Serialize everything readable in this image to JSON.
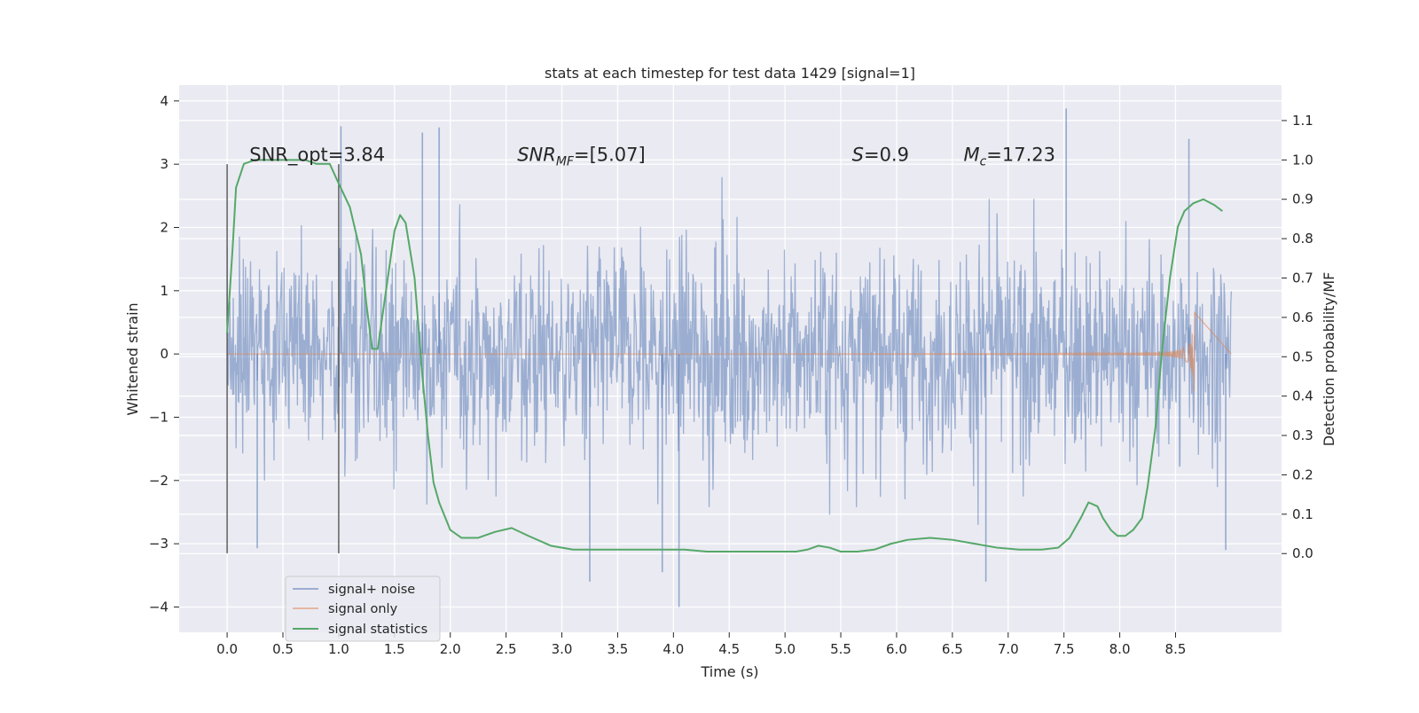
{
  "chart_data": {
    "type": "line",
    "title": "stats at each timestep for test data 1429 [signal=1]",
    "xlabel": "Time (s)",
    "ylabel_left": "Whitened strain",
    "ylabel_right": "Detection probability/MF",
    "xlim": [
      -0.43,
      9.45
    ],
    "ylim_left": [
      -4.4,
      4.25
    ],
    "ylim_right": [
      -0.2,
      1.19
    ],
    "x_ticks": [
      "0.0",
      "0.5",
      "1.0",
      "1.5",
      "2.0",
      "2.5",
      "3.0",
      "3.5",
      "4.0",
      "4.5",
      "5.0",
      "5.5",
      "6.0",
      "6.5",
      "7.0",
      "7.5",
      "8.0",
      "8.5"
    ],
    "x_tick_values": [
      0.0,
      0.5,
      1.0,
      1.5,
      2.0,
      2.5,
      3.0,
      3.5,
      4.0,
      4.5,
      5.0,
      5.5,
      6.0,
      6.5,
      7.0,
      7.5,
      8.0,
      8.5
    ],
    "y_left_ticks": [
      "4",
      "3",
      "2",
      "1",
      "0",
      "−1",
      "−2",
      "−3",
      "−4"
    ],
    "y_left_tick_values": [
      4,
      3,
      2,
      1,
      0,
      -1,
      -2,
      -3,
      -4
    ],
    "y_right_ticks": [
      "1.1",
      "1.0",
      "0.9",
      "0.8",
      "0.7",
      "0.6",
      "0.5",
      "0.4",
      "0.3",
      "0.2",
      "0.1",
      "0.0"
    ],
    "y_right_tick_values": [
      1.1,
      1.0,
      0.9,
      0.8,
      0.7,
      0.6,
      0.5,
      0.4,
      0.3,
      0.2,
      0.1,
      0.0
    ],
    "grid": true,
    "legend_position": "lower-left",
    "annotations": [
      {
        "text": "SNR_opt=3.84",
        "x": 0.2,
        "y": 3.05
      },
      {
        "text": "SNR",
        "sub": "MF",
        "rest": "=[5.07]",
        "x": 2.6,
        "y": 3.05,
        "italic": true
      },
      {
        "text": "S",
        "rest": "=0.9",
        "x": 5.6,
        "y": 3.05,
        "italic": true
      },
      {
        "text": "M",
        "sub": "c",
        "rest": "=17.23",
        "x": 6.6,
        "y": 3.05,
        "italic": true
      }
    ],
    "vertical_lines": [
      {
        "x": 0.0,
        "y_range": [
          -3.15,
          3.0
        ]
      },
      {
        "x": 1.0,
        "y_range": [
          -3.15,
          3.0
        ]
      }
    ],
    "series": [
      {
        "name": "signal+ noise",
        "axis": "left",
        "color": "#4c72b0",
        "kind": "noise",
        "x_range": [
          0.0,
          9.0
        ],
        "envelope": [
          -2.3,
          2.3
        ],
        "extreme_peaks": [
          {
            "x": 1.02,
            "y": 3.6
          },
          {
            "x": 1.75,
            "y": 3.5
          },
          {
            "x": 1.9,
            "y": 3.58
          },
          {
            "x": 7.52,
            "y": 3.88
          },
          {
            "x": 8.62,
            "y": 3.4
          },
          {
            "x": 4.05,
            "y": -4.0
          },
          {
            "x": 3.25,
            "y": -3.6
          },
          {
            "x": 6.8,
            "y": -3.6
          },
          {
            "x": 3.9,
            "y": -3.45
          },
          {
            "x": 8.95,
            "y": -3.1
          },
          {
            "x": 0.27,
            "y": -3.07
          }
        ]
      },
      {
        "name": "signal only",
        "axis": "left",
        "color": "#dd8452",
        "kind": "chirp",
        "x_range": [
          0.0,
          8.67
        ],
        "peak_amplitude": 0.68,
        "tail_x_range": [
          8.67,
          9.0
        ]
      },
      {
        "name": "signal statistics",
        "axis": "right",
        "color": "#55a868",
        "x": [
          0.0,
          0.05,
          0.08,
          0.15,
          0.25,
          0.4,
          0.55,
          0.7,
          0.8,
          0.92,
          1.0,
          1.1,
          1.2,
          1.25,
          1.3,
          1.35,
          1.42,
          1.5,
          1.55,
          1.6,
          1.68,
          1.75,
          1.8,
          1.85,
          1.9,
          2.0,
          2.1,
          2.25,
          2.4,
          2.55,
          2.7,
          2.9,
          3.1,
          3.3,
          3.5,
          3.7,
          3.9,
          4.1,
          4.3,
          4.5,
          4.7,
          4.9,
          5.1,
          5.2,
          5.3,
          5.4,
          5.5,
          5.65,
          5.8,
          5.95,
          6.1,
          6.3,
          6.5,
          6.7,
          6.9,
          7.1,
          7.3,
          7.45,
          7.55,
          7.65,
          7.72,
          7.8,
          7.85,
          7.92,
          7.98,
          8.05,
          8.12,
          8.2,
          8.25,
          8.32,
          8.38,
          8.45,
          8.52,
          8.58,
          8.66,
          8.75,
          8.85,
          8.92
        ],
        "values": [
          0.56,
          0.78,
          0.93,
          0.99,
          1.0,
          1.0,
          1.0,
          1.0,
          0.99,
          0.99,
          0.94,
          0.88,
          0.76,
          0.63,
          0.52,
          0.52,
          0.66,
          0.82,
          0.86,
          0.84,
          0.7,
          0.45,
          0.3,
          0.18,
          0.13,
          0.06,
          0.04,
          0.04,
          0.055,
          0.065,
          0.045,
          0.02,
          0.01,
          0.01,
          0.01,
          0.01,
          0.01,
          0.01,
          0.005,
          0.005,
          0.005,
          0.005,
          0.005,
          0.01,
          0.02,
          0.015,
          0.005,
          0.005,
          0.01,
          0.025,
          0.035,
          0.04,
          0.035,
          0.025,
          0.015,
          0.01,
          0.01,
          0.015,
          0.04,
          0.09,
          0.13,
          0.12,
          0.09,
          0.06,
          0.045,
          0.045,
          0.06,
          0.09,
          0.17,
          0.32,
          0.52,
          0.7,
          0.83,
          0.87,
          0.89,
          0.9,
          0.885,
          0.87
        ]
      }
    ]
  }
}
